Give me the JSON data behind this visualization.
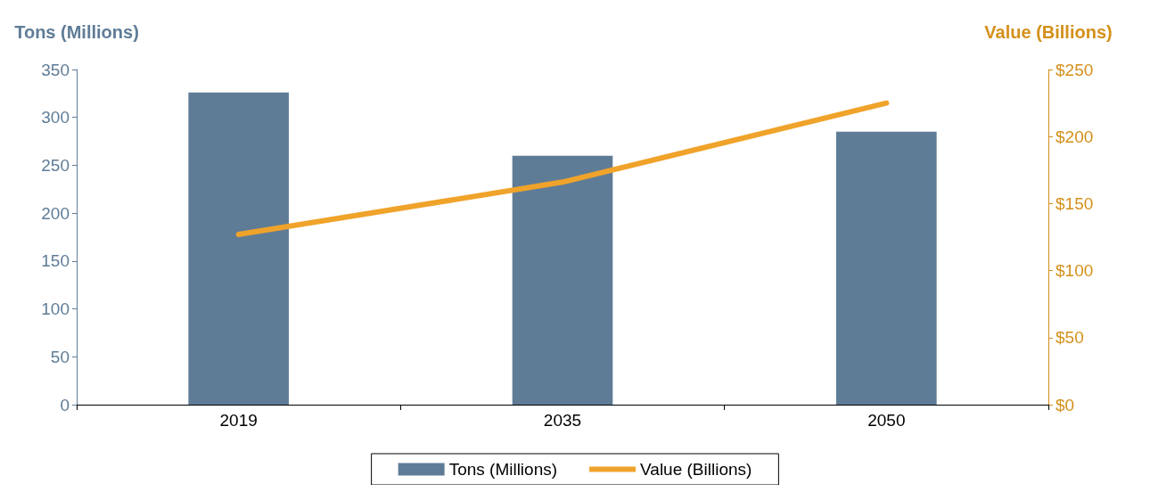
{
  "chart_data": {
    "type": "bar",
    "categories": [
      "2019",
      "2035",
      "2050"
    ],
    "ylabel": "Tons (Millions)",
    "y2label": "Value (Billions)",
    "series": [
      {
        "name": "Tons (Millions)",
        "color": "#5f7c97",
        "values": [
          326,
          260,
          285
        ]
      },
      {
        "name": "Value (Billions)",
        "type": "line",
        "axis": "y2",
        "color": "#f0a32a",
        "values": [
          127,
          166,
          225
        ]
      }
    ],
    "ylim": [
      0,
      350
    ],
    "yticks": [
      0,
      50,
      100,
      150,
      200,
      250,
      300,
      350
    ],
    "y2lim": [
      0,
      250
    ],
    "y2ticks": [
      {
        "value": 0,
        "label": "$0"
      },
      {
        "value": 50,
        "label": "$50"
      },
      {
        "value": 100,
        "label": "$100"
      },
      {
        "value": 150,
        "label": "$150"
      },
      {
        "value": 200,
        "label": "$200"
      },
      {
        "value": 250,
        "label": "$250"
      }
    ],
    "grid": false,
    "legend": "bottom",
    "marker": "none"
  }
}
